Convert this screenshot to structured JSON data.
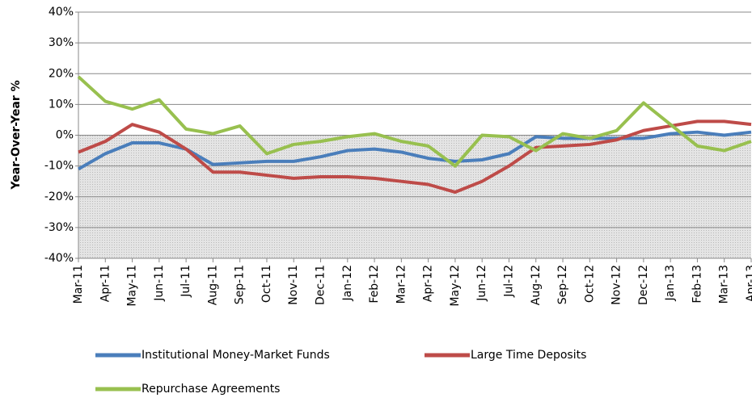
{
  "chart_data": {
    "type": "line",
    "y_label": "Year-Over-Year %",
    "categories": [
      "Mar-11",
      "Apr-11",
      "May-11",
      "Jun-11",
      "Jul-11",
      "Aug-11",
      "Sep-11",
      "Oct-11",
      "Nov-11",
      "Dec-11",
      "Jan-12",
      "Feb-12",
      "Mar-12",
      "Apr-12",
      "May-12",
      "Jun-12",
      "Jul-12",
      "Aug-12",
      "Sep-12",
      "Oct-12",
      "Nov-12",
      "Dec-12",
      "Jan-13",
      "Feb-13",
      "Mar-13",
      "Apr-13"
    ],
    "series": [
      {
        "name": "Institutional Money-Market Funds",
        "color": "#4a7ebb",
        "values": [
          -11,
          -6,
          -2.5,
          -2.5,
          -4.5,
          -9.5,
          -9,
          -8.5,
          -8.5,
          -7,
          -5,
          -4.5,
          -5.5,
          -7.5,
          -8.5,
          -8,
          -6,
          -0.5,
          -1,
          -1,
          -1,
          -1,
          0.5,
          1,
          0,
          1
        ]
      },
      {
        "name": "Large Time Deposits",
        "color": "#be4b48",
        "values": [
          -5.5,
          -2,
          3.5,
          1,
          -4.5,
          -12,
          -12,
          -13,
          -14,
          -13.5,
          -13.5,
          -14,
          -15,
          -16,
          -18.5,
          -15,
          -10,
          -4,
          -3.5,
          -3,
          -1.5,
          1.5,
          3,
          4.5,
          4.5,
          3.5
        ]
      },
      {
        "name": "Repurchase Agreements",
        "color": "#98c04f",
        "values": [
          19,
          11,
          8.5,
          11.5,
          2,
          0.5,
          3,
          -6,
          -3,
          -2,
          -0.5,
          0.5,
          -2,
          -3.5,
          -10,
          0,
          -0.5,
          -5,
          0.5,
          -1,
          1.5,
          10.5,
          3.5,
          -3.5,
          -5,
          -2
        ]
      }
    ],
    "ylim": [
      -40,
      40
    ],
    "yticks": [
      {
        "value": -40,
        "label": "-40%"
      },
      {
        "value": -30,
        "label": "-30%"
      },
      {
        "value": -20,
        "label": "-20%"
      },
      {
        "value": -10,
        "label": "-10%"
      },
      {
        "value": 0,
        "label": "0%"
      },
      {
        "value": 10,
        "label": "10%"
      },
      {
        "value": 20,
        "label": "20%"
      },
      {
        "value": 30,
        "label": "30%"
      },
      {
        "value": 40,
        "label": "40%"
      }
    ],
    "grid": true
  }
}
